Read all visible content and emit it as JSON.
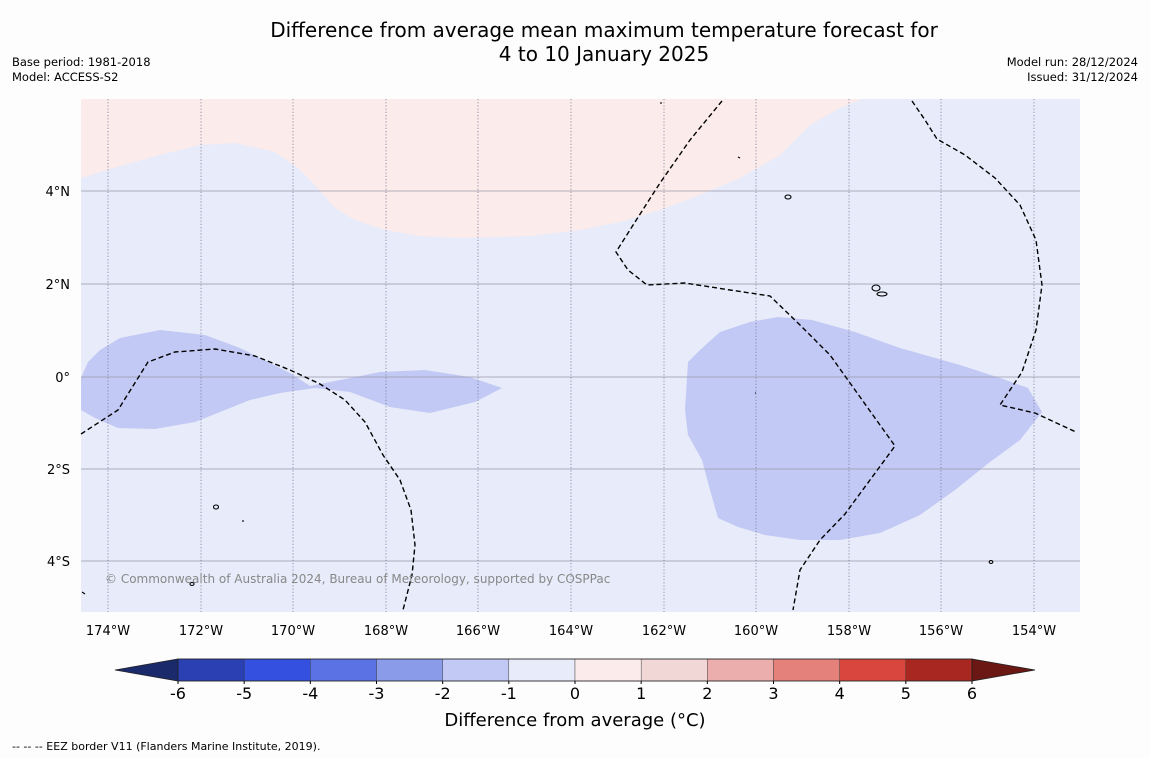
{
  "header": {
    "title_line1": "Difference from average mean maximum temperature forecast for",
    "title_line2": "4 to 10 January 2025",
    "base_period": "Base period: 1981-2018",
    "model": "Model: ACCESS-S2",
    "model_run": "Model run: 28/12/2024",
    "issued": "Issued: 31/12/2024"
  },
  "map": {
    "lat_labels": [
      "4°N",
      "2°N",
      "0°",
      "2°S",
      "4°S"
    ],
    "lon_labels": [
      "174°W",
      "172°W",
      "170°W",
      "168°W",
      "166°W",
      "164°W",
      "162°W",
      "160°W",
      "158°W",
      "156°W",
      "154°W"
    ],
    "background_color": "#e8ebfa",
    "warm_region_color": "#fbebea",
    "cool_region_color": "#c2c9f4",
    "copyright": "© Commonwealth of Australia 2024, Bureau of Meteorology, supported by COSPPac"
  },
  "colorbar": {
    "tick_labels": [
      "-6",
      "-5",
      "-4",
      "-3",
      "-2",
      "-1",
      "0",
      "1",
      "2",
      "3",
      "4",
      "5",
      "6"
    ],
    "colors": [
      "#1b2a6b",
      "#2a40b3",
      "#3350e0",
      "#5b72e4",
      "#8a9be9",
      "#c2c9f4",
      "#e8ebfa",
      "#fbebea",
      "#f1d7d5",
      "#ecaeac",
      "#e5817b",
      "#d9463d",
      "#a82821",
      "#6b1714"
    ],
    "label": "Difference from average (°C)"
  },
  "footer": {
    "legend_text": "--  --  -- EEZ border V11 (Flanders Marine Institute, 2019)."
  }
}
